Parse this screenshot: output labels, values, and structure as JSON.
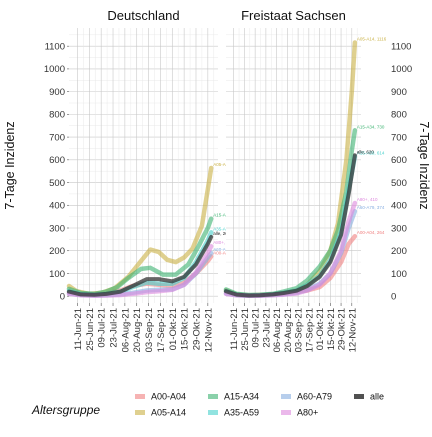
{
  "chart_data": {
    "type": "line",
    "ylabel": "7-Tage Inzidenz",
    "xlabel": "",
    "ylim": [
      -30,
      1180
    ],
    "yticks": [
      0,
      100,
      200,
      300,
      400,
      500,
      600,
      700,
      800,
      900,
      1000,
      1100
    ],
    "x_tick_labels": [
      "11-Jun-21",
      "25-Jun-21",
      "09-Jul-21",
      "23-Jul-21",
      "06-Aug-21",
      "20-Aug-21",
      "03-Sep-21",
      "17-Sep-21",
      "01-Okt-21",
      "15-Okt-21",
      "29-Okt-21",
      "12-Nov-21"
    ],
    "xlim": [
      "2021-06-01",
      "2021-11-24"
    ],
    "grid": true,
    "legend": {
      "title": "Altersgruppe",
      "position": "bottom",
      "entries": [
        {
          "label": "A00-A04",
          "color": "#f08080"
        },
        {
          "label": "A05-A14",
          "color": "#c9b145"
        },
        {
          "label": "A15-A34",
          "color": "#3cb371"
        },
        {
          "label": "A35-A59",
          "color": "#48d1cc"
        },
        {
          "label": "A60-A79",
          "color": "#87aee0"
        },
        {
          "label": "A80+",
          "color": "#dd88dd"
        },
        {
          "label": "alle",
          "color": "#333333"
        }
      ]
    },
    "panels": [
      {
        "title": "Deutschland",
        "series": [
          {
            "name": "A00-A04",
            "color": "#f08080",
            "points": [
              [
                "2021-06-01",
                18
              ],
              [
                "2021-06-15",
                8
              ],
              [
                "2021-07-01",
                6
              ],
              [
                "2021-07-15",
                12
              ],
              [
                "2021-08-01",
                25
              ],
              [
                "2021-08-15",
                45
              ],
              [
                "2021-09-01",
                55
              ],
              [
                "2021-09-15",
                50
              ],
              [
                "2021-10-01",
                45
              ],
              [
                "2021-10-15",
                60
              ],
              [
                "2021-10-29",
                100
              ],
              [
                "2021-11-12",
                155
              ],
              [
                "2021-11-16",
                175
              ]
            ],
            "end_label": "A00-A04, 175"
          },
          {
            "name": "A05-A14",
            "color": "#c9b145",
            "points": [
              [
                "2021-06-01",
                45
              ],
              [
                "2021-06-10",
                22
              ],
              [
                "2021-06-25",
                10
              ],
              [
                "2021-07-10",
                15
              ],
              [
                "2021-07-25",
                35
              ],
              [
                "2021-08-10",
                85
              ],
              [
                "2021-08-25",
                155
              ],
              [
                "2021-09-05",
                205
              ],
              [
                "2021-09-15",
                195
              ],
              [
                "2021-09-25",
                160
              ],
              [
                "2021-10-05",
                150
              ],
              [
                "2021-10-15",
                170
              ],
              [
                "2021-10-25",
                210
              ],
              [
                "2021-11-05",
                310
              ],
              [
                "2021-11-12",
                470
              ],
              [
                "2021-11-16",
                564
              ]
            ],
            "end_label": "A05-A14, 564"
          },
          {
            "name": "A15-A34",
            "color": "#3cb371",
            "points": [
              [
                "2021-06-01",
                32
              ],
              [
                "2021-06-15",
                14
              ],
              [
                "2021-07-01",
                10
              ],
              [
                "2021-07-15",
                20
              ],
              [
                "2021-07-28",
                40
              ],
              [
                "2021-08-10",
                80
              ],
              [
                "2021-08-25",
                120
              ],
              [
                "2021-09-05",
                125
              ],
              [
                "2021-09-20",
                95
              ],
              [
                "2021-10-05",
                95
              ],
              [
                "2021-10-20",
                140
              ],
              [
                "2021-11-01",
                220
              ],
              [
                "2021-11-12",
                300
              ],
              [
                "2021-11-16",
                341
              ]
            ],
            "end_label": "A15-A34, 341"
          },
          {
            "name": "A35-A59",
            "color": "#48d1cc",
            "points": [
              [
                "2021-06-01",
                22
              ],
              [
                "2021-06-15",
                9
              ],
              [
                "2021-07-01",
                6
              ],
              [
                "2021-07-15",
                10
              ],
              [
                "2021-08-01",
                20
              ],
              [
                "2021-08-15",
                40
              ],
              [
                "2021-09-01",
                60
              ],
              [
                "2021-09-15",
                55
              ],
              [
                "2021-10-01",
                55
              ],
              [
                "2021-10-15",
                80
              ],
              [
                "2021-10-29",
                150
              ],
              [
                "2021-11-12",
                245
              ],
              [
                "2021-11-16",
                281
              ]
            ],
            "end_label": "A35-A59, 281"
          },
          {
            "name": "A60-A79",
            "color": "#87aee0",
            "points": [
              [
                "2021-06-01",
                12
              ],
              [
                "2021-06-15",
                5
              ],
              [
                "2021-07-01",
                3
              ],
              [
                "2021-07-15",
                4
              ],
              [
                "2021-08-01",
                8
              ],
              [
                "2021-08-15",
                15
              ],
              [
                "2021-09-01",
                25
              ],
              [
                "2021-09-15",
                28
              ],
              [
                "2021-10-01",
                30
              ],
              [
                "2021-10-15",
                50
              ],
              [
                "2021-10-29",
                100
              ],
              [
                "2021-11-12",
                170
              ],
              [
                "2021-11-16",
                190
              ]
            ],
            "end_label": "A60-A79, 190"
          },
          {
            "name": "A80+",
            "color": "#dd88dd",
            "points": [
              [
                "2021-06-01",
                10
              ],
              [
                "2021-06-15",
                4
              ],
              [
                "2021-07-01",
                2
              ],
              [
                "2021-07-15",
                3
              ],
              [
                "2021-08-01",
                5
              ],
              [
                "2021-08-15",
                10
              ],
              [
                "2021-09-01",
                18
              ],
              [
                "2021-09-15",
                22
              ],
              [
                "2021-10-01",
                28
              ],
              [
                "2021-10-15",
                50
              ],
              [
                "2021-10-29",
                105
              ],
              [
                "2021-11-12",
                190
              ],
              [
                "2021-11-16",
                220
              ]
            ],
            "end_label": "A80+, 220"
          },
          {
            "name": "alle",
            "color": "#333333",
            "points": [
              [
                "2021-06-01",
                20
              ],
              [
                "2021-06-15",
                8
              ],
              [
                "2021-07-01",
                6
              ],
              [
                "2021-07-15",
                10
              ],
              [
                "2021-08-01",
                20
              ],
              [
                "2021-08-15",
                45
              ],
              [
                "2021-09-01",
                75
              ],
              [
                "2021-09-15",
                75
              ],
              [
                "2021-10-01",
                65
              ],
              [
                "2021-10-15",
                85
              ],
              [
                "2021-10-29",
                140
              ],
              [
                "2021-11-12",
                230
              ],
              [
                "2021-11-16",
                261
              ]
            ],
            "end_label": "alle, 261"
          }
        ]
      },
      {
        "title": "Freistaat Sachsen",
        "series": [
          {
            "name": "A00-A04",
            "color": "#f08080",
            "points": [
              [
                "2021-06-01",
                20
              ],
              [
                "2021-06-15",
                6
              ],
              [
                "2021-07-01",
                3
              ],
              [
                "2021-07-15",
                5
              ],
              [
                "2021-08-01",
                8
              ],
              [
                "2021-08-15",
                12
              ],
              [
                "2021-09-01",
                20
              ],
              [
                "2021-09-15",
                25
              ],
              [
                "2021-10-01",
                40
              ],
              [
                "2021-10-15",
                80
              ],
              [
                "2021-10-29",
                150
              ],
              [
                "2021-11-08",
                230
              ],
              [
                "2021-11-16",
                264
              ]
            ],
            "end_label": "A00-A04, 264"
          },
          {
            "name": "A05-A14",
            "color": "#c9b145",
            "points": [
              [
                "2021-06-01",
                25
              ],
              [
                "2021-06-15",
                8
              ],
              [
                "2021-07-01",
                4
              ],
              [
                "2021-07-15",
                5
              ],
              [
                "2021-08-01",
                8
              ],
              [
                "2021-08-15",
                15
              ],
              [
                "2021-09-01",
                25
              ],
              [
                "2021-09-15",
                50
              ],
              [
                "2021-10-01",
                110
              ],
              [
                "2021-10-15",
                200
              ],
              [
                "2021-10-25",
                320
              ],
              [
                "2021-11-05",
                600
              ],
              [
                "2021-11-12",
                900
              ],
              [
                "2021-11-16",
                1116
              ]
            ],
            "end_label": "A05-A14, 1116"
          },
          {
            "name": "A15-A34",
            "color": "#3cb371",
            "points": [
              [
                "2021-06-01",
                30
              ],
              [
                "2021-06-15",
                10
              ],
              [
                "2021-07-01",
                5
              ],
              [
                "2021-07-15",
                6
              ],
              [
                "2021-08-01",
                10
              ],
              [
                "2021-08-15",
                20
              ],
              [
                "2021-09-01",
                35
              ],
              [
                "2021-09-15",
                70
              ],
              [
                "2021-10-01",
                130
              ],
              [
                "2021-10-15",
                200
              ],
              [
                "2021-10-25",
                290
              ],
              [
                "2021-11-05",
                460
              ],
              [
                "2021-11-12",
                640
              ],
              [
                "2021-11-16",
                730
              ]
            ],
            "end_label": "A15-A34, 730"
          },
          {
            "name": "A35-A59",
            "color": "#48d1cc",
            "points": [
              [
                "2021-06-01",
                22
              ],
              [
                "2021-06-15",
                7
              ],
              [
                "2021-07-01",
                3
              ],
              [
                "2021-07-15",
                4
              ],
              [
                "2021-08-01",
                8
              ],
              [
                "2021-08-15",
                15
              ],
              [
                "2021-09-01",
                25
              ],
              [
                "2021-09-15",
                50
              ],
              [
                "2021-10-01",
                90
              ],
              [
                "2021-10-15",
                160
              ],
              [
                "2021-10-29",
                280
              ],
              [
                "2021-11-08",
                470
              ],
              [
                "2021-11-16",
                614
              ]
            ],
            "end_label": "A35-A59, 614"
          },
          {
            "name": "A60-A79",
            "color": "#87aee0",
            "points": [
              [
                "2021-06-01",
                12
              ],
              [
                "2021-06-15",
                4
              ],
              [
                "2021-07-01",
                2
              ],
              [
                "2021-07-15",
                3
              ],
              [
                "2021-08-01",
                5
              ],
              [
                "2021-08-15",
                8
              ],
              [
                "2021-09-01",
                15
              ],
              [
                "2021-09-15",
                28
              ],
              [
                "2021-10-01",
                55
              ],
              [
                "2021-10-15",
                100
              ],
              [
                "2021-10-29",
                190
              ],
              [
                "2021-11-08",
                300
              ],
              [
                "2021-11-16",
                374
              ]
            ],
            "end_label": "A60-A79, 374"
          },
          {
            "name": "A80+",
            "color": "#dd88dd",
            "points": [
              [
                "2021-06-01",
                10
              ],
              [
                "2021-06-15",
                4
              ],
              [
                "2021-07-01",
                2
              ],
              [
                "2021-07-15",
                2
              ],
              [
                "2021-08-01",
                4
              ],
              [
                "2021-08-15",
                7
              ],
              [
                "2021-09-01",
                12
              ],
              [
                "2021-09-15",
                25
              ],
              [
                "2021-10-01",
                50
              ],
              [
                "2021-10-15",
                100
              ],
              [
                "2021-10-29",
                200
              ],
              [
                "2021-11-08",
                330
              ],
              [
                "2021-11-16",
                410
              ]
            ],
            "end_label": "A80+, 410"
          },
          {
            "name": "alle",
            "color": "#333333",
            "points": [
              [
                "2021-06-01",
                22
              ],
              [
                "2021-06-15",
                7
              ],
              [
                "2021-07-01",
                3
              ],
              [
                "2021-07-15",
                4
              ],
              [
                "2021-08-01",
                8
              ],
              [
                "2021-08-15",
                14
              ],
              [
                "2021-09-01",
                24
              ],
              [
                "2021-09-15",
                45
              ],
              [
                "2021-10-01",
                85
              ],
              [
                "2021-10-15",
                150
              ],
              [
                "2021-10-29",
                270
              ],
              [
                "2021-11-08",
                450
              ],
              [
                "2021-11-16",
                620
              ]
            ],
            "end_label": "alle, 620"
          }
        ]
      }
    ]
  }
}
